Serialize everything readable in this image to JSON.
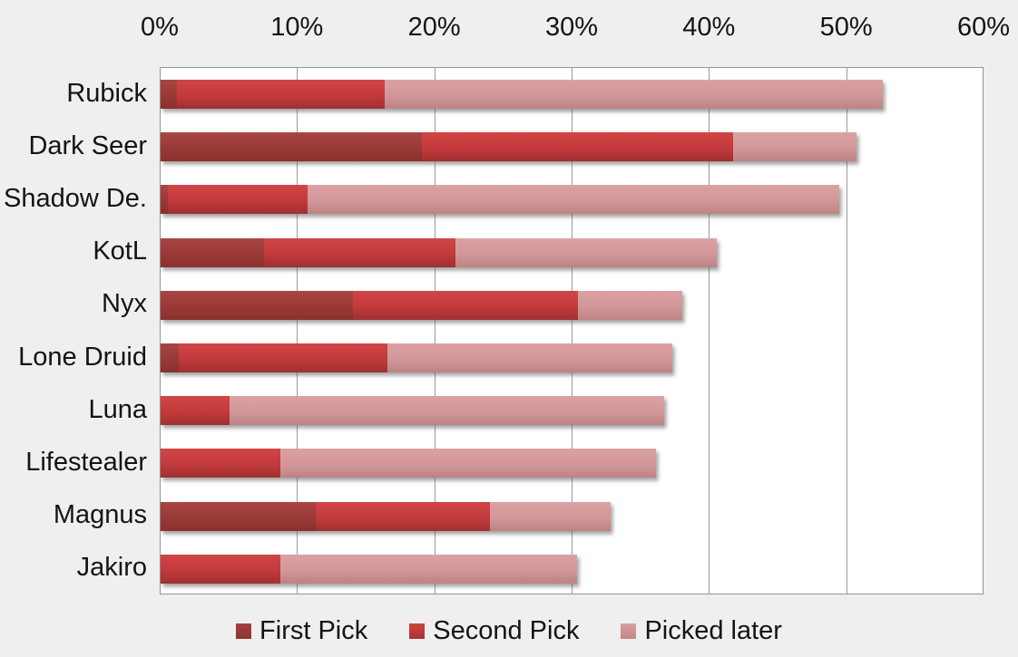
{
  "chart_data": {
    "type": "bar",
    "orientation": "horizontal",
    "stacked": true,
    "title": "",
    "xlabel": "",
    "ylabel": "",
    "x_axis": {
      "position": "top",
      "min": 0,
      "max": 60,
      "tick_labels": [
        "0%",
        "10%",
        "20%",
        "30%",
        "40%",
        "50%",
        "60%"
      ],
      "tick_values": [
        0,
        10,
        20,
        30,
        40,
        50,
        60
      ]
    },
    "grid": true,
    "legend_position": "bottom",
    "categories": [
      "Rubick",
      "Dark Seer",
      "Shadow De.",
      "KotL",
      "Nyx",
      "Lone Druid",
      "Luna",
      "Lifestealer",
      "Magnus",
      "Jakiro"
    ],
    "series": [
      {
        "name": "First Pick",
        "color": "#953735",
        "values": [
          1.2,
          19.0,
          0.5,
          7.5,
          14.0,
          1.3,
          0,
          0,
          11.3,
          0
        ]
      },
      {
        "name": "Second Pick",
        "color": "#c0393b",
        "values": [
          15.1,
          22.7,
          10.2,
          14.0,
          16.4,
          15.2,
          5.0,
          8.7,
          12.7,
          8.7
        ]
      },
      {
        "name": "Picked later",
        "color": "#d59c9d",
        "values": [
          36.3,
          9.0,
          38.7,
          19.0,
          7.6,
          20.8,
          31.7,
          27.4,
          8.8,
          21.6
        ]
      }
    ],
    "totals": [
      52.6,
      50.7,
      49.4,
      40.5,
      38.0,
      37.3,
      36.7,
      36.1,
      32.8,
      30.3
    ]
  },
  "colors": {
    "background": "#f0efef",
    "plot_background": "#ffffff",
    "gridline": "#9a9a9a",
    "text": "#141414",
    "first_pick": "#953735",
    "second_pick": "#c0393b",
    "picked_later": "#d59c9d"
  }
}
